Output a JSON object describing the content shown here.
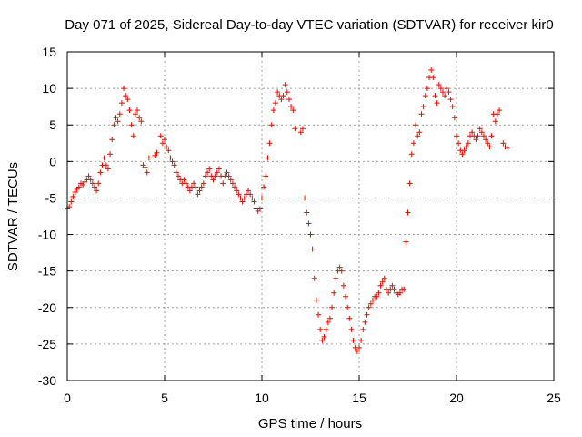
{
  "chart_data": {
    "type": "scatter",
    "title": "Day 071 of 2025, Sidereal Day-to-day VTEC variation (SDTVAR) for receiver kir0",
    "xlabel": "GPS time / hours",
    "ylabel": "SDTVAR / TECUs",
    "xlim": [
      0,
      25
    ],
    "ylim": [
      -30,
      15
    ],
    "xticks": [
      0,
      5,
      10,
      15,
      20,
      25
    ],
    "xtick_labels": [
      "0",
      "5",
      "10",
      "15",
      "20",
      "25"
    ],
    "yticks": [
      -30,
      -25,
      -20,
      -15,
      -10,
      -5,
      0,
      5,
      10,
      15
    ],
    "ytick_labels": [
      "-30",
      "-25",
      "-20",
      "-15",
      "-10",
      "-5",
      "0",
      "5",
      "10",
      "15"
    ],
    "grid": true,
    "marker": "+",
    "color": "#ff0000",
    "series": [
      {
        "name": "SDTVAR",
        "x": [
          0.0,
          0.1,
          0.2,
          0.3,
          0.4,
          0.5,
          0.6,
          0.7,
          0.8,
          0.9,
          1.0,
          1.1,
          1.2,
          1.3,
          1.4,
          1.5,
          1.6,
          1.7,
          1.8,
          1.9,
          2.0,
          2.1,
          2.2,
          2.3,
          2.4,
          2.5,
          2.6,
          2.7,
          2.8,
          2.9,
          3.0,
          3.1,
          3.2,
          3.3,
          3.4,
          3.5,
          3.6,
          3.7,
          3.8,
          3.9,
          4.0,
          4.1,
          4.2,
          4.5,
          4.6,
          4.8,
          4.9,
          5.0,
          5.1,
          5.2,
          5.3,
          5.4,
          5.5,
          5.6,
          5.7,
          5.8,
          5.9,
          6.0,
          6.1,
          6.2,
          6.3,
          6.4,
          6.5,
          6.6,
          6.7,
          6.8,
          6.9,
          7.0,
          7.1,
          7.2,
          7.3,
          7.4,
          7.5,
          7.6,
          7.7,
          7.8,
          7.9,
          8.0,
          8.1,
          8.2,
          8.3,
          8.4,
          8.5,
          8.6,
          8.7,
          8.8,
          8.9,
          9.0,
          9.1,
          9.2,
          9.3,
          9.4,
          9.5,
          9.6,
          9.7,
          9.8,
          9.9,
          10.0,
          10.1,
          10.2,
          10.3,
          10.4,
          10.5,
          10.6,
          10.7,
          10.8,
          10.9,
          11.0,
          11.1,
          11.2,
          11.3,
          11.4,
          11.5,
          11.6,
          11.7,
          12.0,
          12.1,
          12.2,
          12.3,
          12.4,
          12.5,
          12.6,
          12.7,
          12.8,
          12.9,
          13.0,
          13.1,
          13.2,
          13.3,
          13.4,
          13.5,
          13.6,
          13.7,
          13.8,
          13.9,
          14.0,
          14.1,
          14.2,
          14.3,
          14.4,
          14.5,
          14.6,
          14.7,
          14.8,
          14.9,
          15.0,
          15.1,
          15.2,
          15.3,
          15.4,
          15.5,
          15.6,
          15.7,
          15.8,
          15.9,
          16.0,
          16.1,
          16.2,
          16.3,
          16.4,
          16.5,
          16.6,
          16.7,
          16.8,
          16.9,
          17.0,
          17.1,
          17.2,
          17.3,
          17.4,
          17.5,
          17.6,
          17.7,
          17.8,
          17.9,
          18.0,
          18.1,
          18.2,
          18.3,
          18.4,
          18.5,
          18.6,
          18.7,
          18.8,
          18.9,
          19.0,
          19.1,
          19.2,
          19.3,
          19.4,
          19.5,
          19.6,
          19.7,
          19.8,
          19.9,
          20.0,
          20.1,
          20.2,
          20.3,
          20.4,
          20.5,
          20.6,
          20.7,
          20.8,
          20.9,
          21.0,
          21.1,
          21.2,
          21.3,
          21.4,
          21.5,
          21.6,
          21.7,
          21.8,
          21.9,
          22.0,
          22.1,
          22.2,
          22.4,
          22.5,
          22.6
        ],
        "y": [
          -6.5,
          -6.2,
          -5.5,
          -4.8,
          -4.2,
          -3.8,
          -3.5,
          -3.0,
          -3.2,
          -2.8,
          -2.5,
          -2.0,
          -2.5,
          -3.0,
          -3.5,
          -4.0,
          -3.0,
          -1.5,
          -0.5,
          0.5,
          -0.5,
          -1.0,
          1.0,
          3.0,
          5.0,
          6.0,
          5.5,
          6.5,
          8.0,
          10.0,
          9.0,
          8.5,
          7.0,
          5.0,
          3.5,
          6.5,
          7.0,
          6.0,
          5.5,
          -0.5,
          -0.8,
          -1.5,
          0.5,
          0.8,
          1.2,
          3.5,
          2.5,
          3.0,
          2.0,
          1.5,
          0.5,
          0.0,
          -0.5,
          -1.5,
          -2.0,
          -2.5,
          -3.0,
          -2.5,
          -3.0,
          -3.5,
          -4.0,
          -3.5,
          -3.0,
          -3.5,
          -4.5,
          -4.0,
          -3.5,
          -3.0,
          -2.0,
          -1.5,
          -1.0,
          -2.0,
          -2.5,
          -2.0,
          -1.5,
          -1.0,
          -2.0,
          -3.0,
          -2.0,
          -1.5,
          -2.0,
          -2.5,
          -3.0,
          -3.5,
          -4.0,
          -4.5,
          -5.0,
          -5.5,
          -5.0,
          -4.5,
          -4.0,
          -4.5,
          -5.0,
          -5.5,
          -6.5,
          -6.8,
          -6.5,
          -5.0,
          -3.5,
          -2.0,
          0.5,
          2.5,
          5.0,
          7.0,
          8.0,
          9.5,
          9.0,
          8.5,
          9.0,
          10.5,
          9.5,
          8.5,
          7.5,
          7.0,
          4.5,
          4.0,
          4.5,
          -5.0,
          -7.0,
          -8.5,
          -10.0,
          -12.0,
          -16.0,
          -19.0,
          -21.0,
          -23.0,
          -24.5,
          -24.0,
          -23.0,
          -22.0,
          -21.5,
          -20.0,
          -18.0,
          -16.0,
          -15.0,
          -14.5,
          -15.0,
          -17.0,
          -18.5,
          -20.0,
          -21.5,
          -23.0,
          -24.5,
          -25.5,
          -26.0,
          -25.5,
          -24.5,
          -23.0,
          -22.0,
          -21.0,
          -20.0,
          -19.5,
          -19.0,
          -18.5,
          -18.5,
          -18.0,
          -17.0,
          -16.5,
          -16.0,
          -17.5,
          -18.0,
          -17.5,
          -17.0,
          -17.5,
          -18.0,
          -18.2,
          -18.0,
          -17.5,
          -17.5,
          -11.0,
          -7.0,
          -3.0,
          1.0,
          2.5,
          5.0,
          3.5,
          4.0,
          6.5,
          7.5,
          9.0,
          10.0,
          11.5,
          12.5,
          11.5,
          9.0,
          8.0,
          10.5,
          10.0,
          9.5,
          9.0,
          10.0,
          9.5,
          8.5,
          7.5,
          6.0,
          3.5,
          2.5,
          1.5,
          1.0,
          1.5,
          2.0,
          2.5,
          3.5,
          4.0,
          3.5,
          3.0,
          3.5,
          4.5,
          4.0,
          3.5,
          3.0,
          2.5,
          2.0,
          3.5,
          6.5,
          5.5,
          6.5,
          7.0,
          2.5,
          2.0,
          1.8
        ]
      }
    ]
  }
}
